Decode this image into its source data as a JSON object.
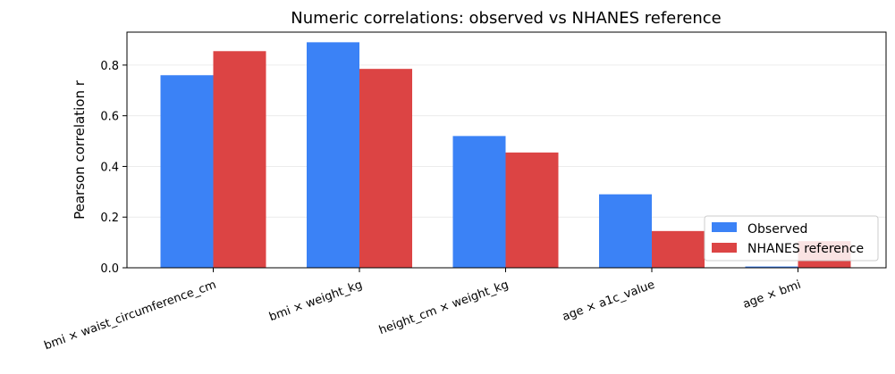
{
  "colors": {
    "observed": "#3b82f6",
    "reference": "#dc4444",
    "grid": "#ececec"
  },
  "chart_data": {
    "type": "bar",
    "title": "Numeric correlations: observed vs NHANES reference",
    "xlabel": "",
    "ylabel": "Pearson correlation r",
    "categories": [
      "bmi × waist_circumference_cm",
      "bmi × weight_kg",
      "height_cm × weight_kg",
      "age × a1c_value",
      "age × bmi"
    ],
    "series": [
      {
        "name": "Observed",
        "values": [
          0.76,
          0.89,
          0.52,
          0.29,
          0.005
        ]
      },
      {
        "name": "NHANES reference",
        "values": [
          0.855,
          0.785,
          0.455,
          0.145,
          0.105
        ]
      }
    ],
    "ylim": [
      0,
      0.93
    ],
    "yticks": [
      "0.0",
      "0.2",
      "0.4",
      "0.6",
      "0.8"
    ],
    "grid": true,
    "legend": "lower-right"
  }
}
